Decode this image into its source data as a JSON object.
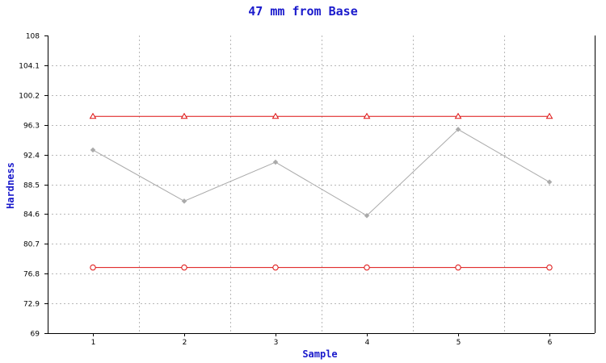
{
  "chart_data": {
    "type": "line",
    "title": "47 mm from Base",
    "xlabel": "Sample",
    "ylabel": "Hardness",
    "ylim": [
      69,
      108
    ],
    "yticks": [
      "69",
      "72.9",
      "76.8",
      "80.7",
      "84.6",
      "88.5",
      "92.4",
      "96.3",
      "100.2",
      "104.1",
      "108"
    ],
    "x": [
      "1",
      "2",
      "3",
      "4",
      "5",
      "6"
    ],
    "grid": true,
    "series": [
      {
        "values": [
          93.0,
          86.3,
          91.4,
          84.4,
          95.7,
          88.8
        ],
        "color": "#aaaaaa",
        "marker": "diamond"
      },
      {
        "values": [
          97.4,
          97.4,
          97.4,
          97.4,
          97.4,
          97.4
        ],
        "color": "#dd1111",
        "marker": "triangle"
      },
      {
        "values": [
          77.6,
          77.6,
          77.6,
          77.6,
          77.6,
          77.6
        ],
        "color": "#dd1111",
        "marker": "circle"
      }
    ]
  }
}
